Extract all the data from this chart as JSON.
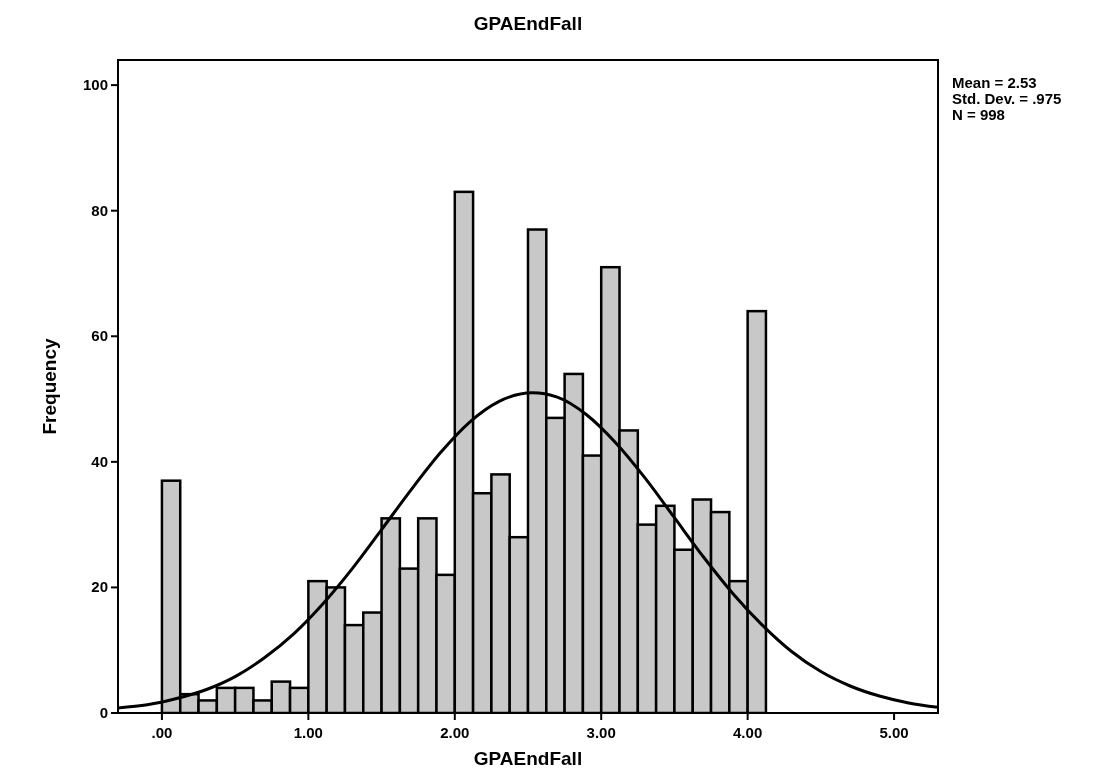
{
  "chart_data": {
    "type": "histogram",
    "title": "GPAEndFall",
    "xlabel": "GPAEndFall",
    "ylabel": "Frequency",
    "bins": [
      0,
      0.125,
      0.25,
      0.375,
      0.5,
      0.625,
      0.75,
      0.875,
      1,
      1.125,
      1.25,
      1.375,
      1.5,
      1.625,
      1.75,
      1.875,
      2,
      2.125,
      2.25,
      2.375,
      2.5,
      2.625,
      2.75,
      2.875,
      3,
      3.125,
      3.25,
      3.375,
      3.5,
      3.625,
      3.75,
      3.875,
      4,
      4.125
    ],
    "values": [
      37,
      3,
      2,
      4,
      4,
      2,
      5,
      4,
      21,
      20,
      14,
      16,
      31,
      23,
      31,
      22,
      83,
      35,
      38,
      28,
      77,
      47,
      54,
      41,
      71,
      45,
      30,
      33,
      26,
      34,
      32,
      21,
      64
    ],
    "color": "#c8c8c8",
    "series": [
      {
        "type": "line",
        "color": "#000000",
        "x": [
          -0.3,
          -0.1,
          0.1,
          0.3,
          0.5,
          0.7,
          0.9,
          1.1,
          1.3,
          1.5,
          1.7,
          1.9,
          2.1,
          2.3,
          2.53,
          2.7,
          2.9,
          3.1,
          3.3,
          3.5,
          3.7,
          3.9,
          4.1,
          4.3,
          4.5,
          4.7,
          4.9,
          5.1,
          5.3
        ],
        "values": [
          0.8,
          1.3,
          2.3,
          3.7,
          5.8,
          8.8,
          12.6,
          17.4,
          23.0,
          29.2,
          35.5,
          41.4,
          46.3,
          49.6,
          51.0,
          50.3,
          47.5,
          43.0,
          37.4,
          31.1,
          24.8,
          19.0,
          14.0,
          9.8,
          6.6,
          4.3,
          2.7,
          1.6,
          0.9
        ]
      }
    ],
    "xlim": [
      -0.3,
      5.3
    ],
    "xticks": [
      {
        "value": 0,
        "label": ".00"
      },
      {
        "value": 1,
        "label": "1.00"
      },
      {
        "value": 2,
        "label": "2.00"
      },
      {
        "value": 3,
        "label": "3.00"
      },
      {
        "value": 4,
        "label": "4.00"
      },
      {
        "value": 5,
        "label": "5.00"
      }
    ],
    "ylim": [
      0,
      104
    ],
    "yticks": [
      0,
      20,
      40,
      60,
      80,
      100
    ],
    "grid": false,
    "marker": "none",
    "line_style": "solid",
    "annotations": [
      "Mean = 2.53",
      "Std. Dev. = .975",
      "N = 998"
    ]
  }
}
